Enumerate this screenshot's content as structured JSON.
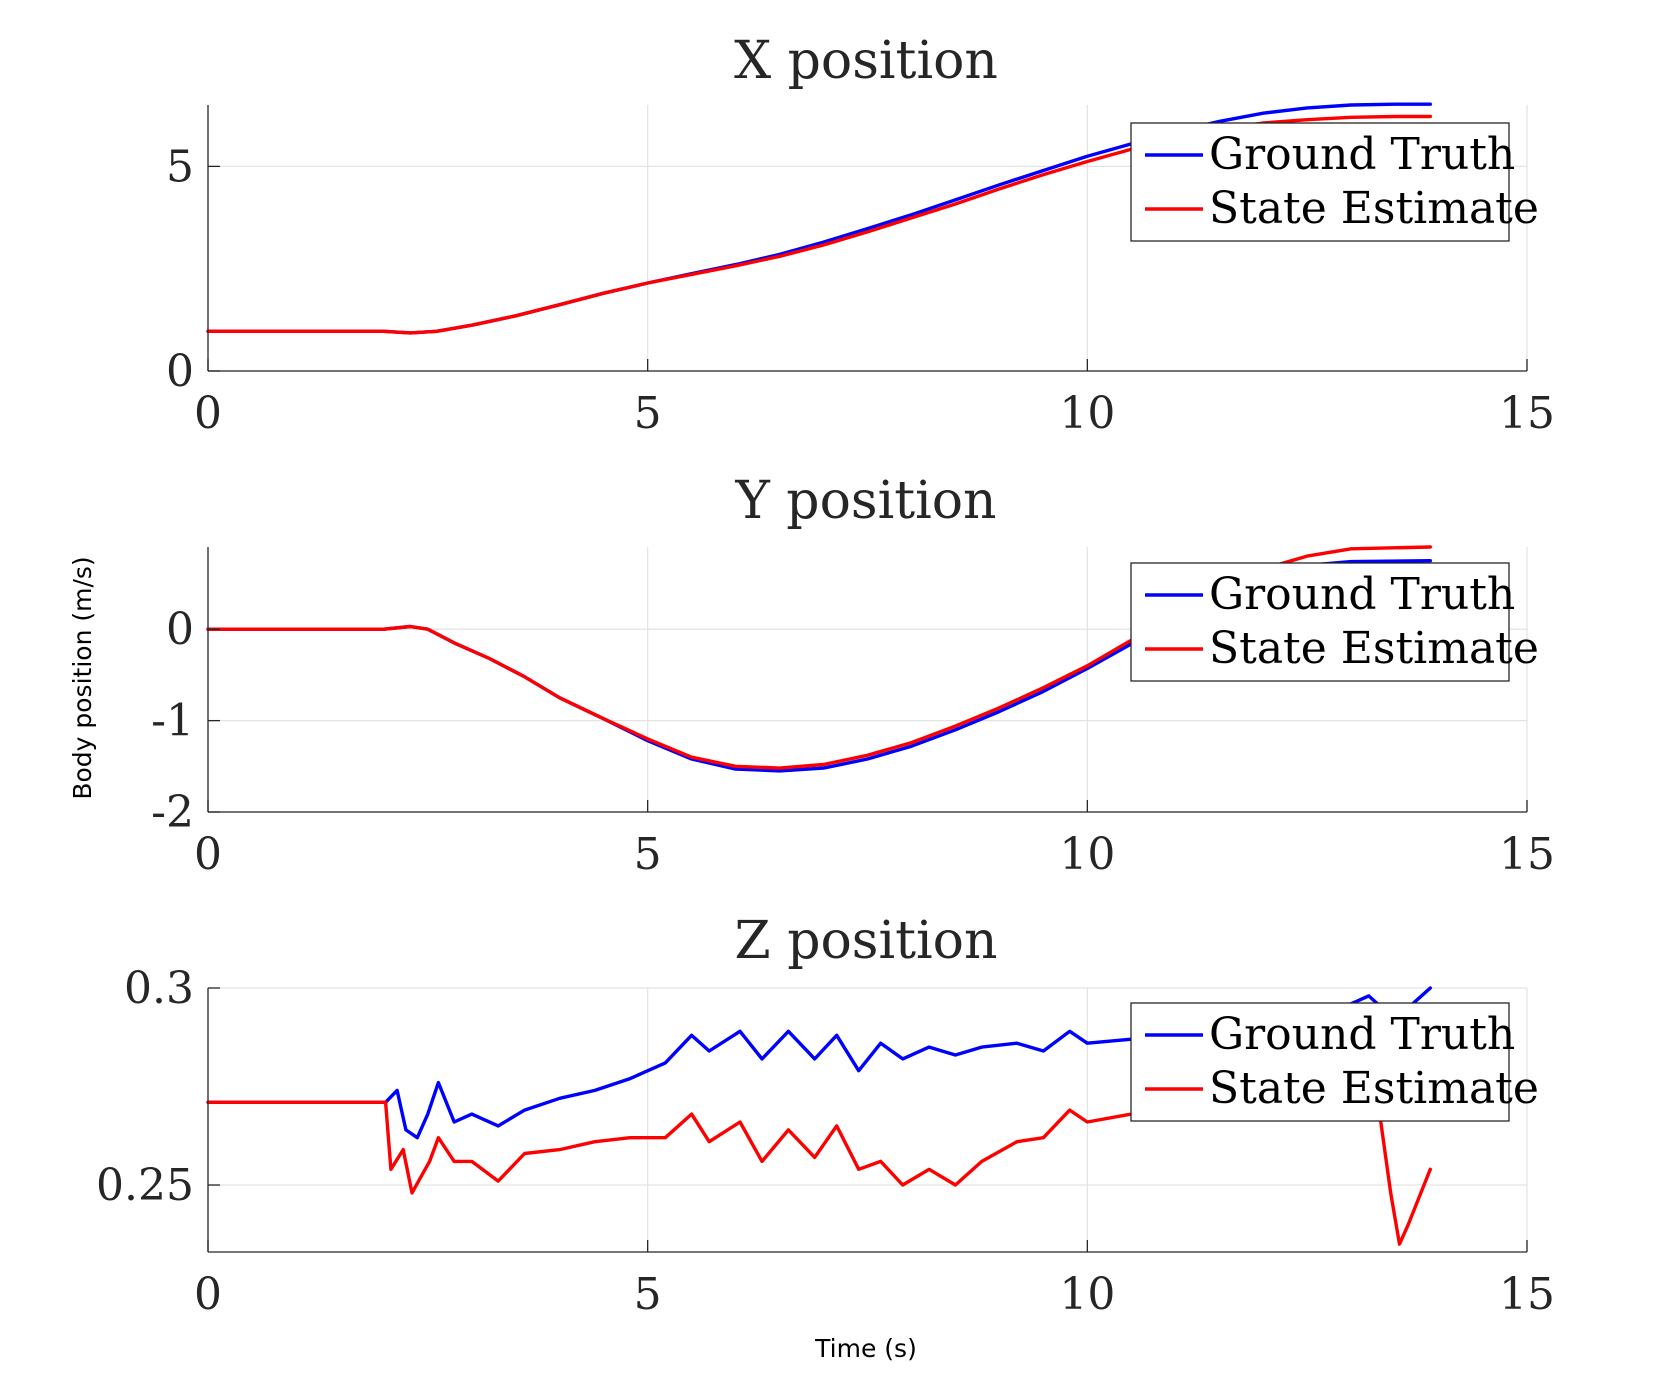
{
  "chart_data": [
    {
      "type": "line",
      "title": "X position",
      "xlim": [
        0,
        15
      ],
      "ylim": [
        0,
        6.5
      ],
      "xticks": [
        0,
        5,
        10,
        15
      ],
      "yticks": [
        0,
        5
      ],
      "grid": true,
      "legend": {
        "position": "top-right",
        "entries": [
          "Ground Truth",
          "State Estimate"
        ]
      },
      "series": [
        {
          "name": "Ground Truth",
          "color": "#0000ff",
          "x": [
            0,
            2.0,
            2.3,
            2.6,
            3.0,
            3.5,
            4.0,
            4.5,
            5.0,
            5.5,
            6.0,
            6.5,
            7.0,
            7.5,
            8.0,
            8.5,
            9.0,
            9.5,
            10.0,
            10.5,
            11.0,
            11.5,
            12.0,
            12.5,
            13.0,
            13.5,
            13.9
          ],
          "y": [
            0.97,
            0.97,
            0.93,
            0.97,
            1.12,
            1.35,
            1.62,
            1.9,
            2.15,
            2.38,
            2.6,
            2.85,
            3.15,
            3.48,
            3.82,
            4.18,
            4.55,
            4.9,
            5.25,
            5.55,
            5.85,
            6.1,
            6.3,
            6.43,
            6.5,
            6.52,
            6.52
          ]
        },
        {
          "name": "State Estimate",
          "color": "#ff0000",
          "x": [
            0,
            2.0,
            2.3,
            2.6,
            3.0,
            3.5,
            4.0,
            4.5,
            5.0,
            5.5,
            6.0,
            6.5,
            7.0,
            7.5,
            8.0,
            8.5,
            9.0,
            9.5,
            10.0,
            10.5,
            11.0,
            11.5,
            12.0,
            12.5,
            13.0,
            13.5,
            13.9
          ],
          "y": [
            0.97,
            0.97,
            0.93,
            0.97,
            1.12,
            1.35,
            1.62,
            1.9,
            2.15,
            2.36,
            2.57,
            2.8,
            3.08,
            3.4,
            3.74,
            4.08,
            4.45,
            4.8,
            5.12,
            5.42,
            5.7,
            5.92,
            6.06,
            6.14,
            6.2,
            6.22,
            6.22
          ]
        }
      ]
    },
    {
      "type": "line",
      "title": "Y position",
      "ylabel": "Body position (m/s)",
      "xlim": [
        0,
        15
      ],
      "ylim": [
        -2,
        0.9
      ],
      "xticks": [
        0,
        5,
        10,
        15
      ],
      "yticks": [
        -2,
        -1,
        0
      ],
      "grid": true,
      "legend": {
        "position": "top-right",
        "entries": [
          "Ground Truth",
          "State Estimate"
        ]
      },
      "series": [
        {
          "name": "Ground Truth",
          "color": "#0000ff",
          "x": [
            0,
            2.0,
            2.3,
            2.5,
            2.8,
            3.2,
            3.6,
            4.0,
            4.5,
            5.0,
            5.5,
            6.0,
            6.5,
            7.0,
            7.5,
            8.0,
            8.5,
            9.0,
            9.5,
            10.0,
            10.5,
            11.0,
            11.5,
            12.0,
            12.5,
            13.0,
            13.9
          ],
          "y": [
            0,
            0,
            0.03,
            0.0,
            -0.15,
            -0.32,
            -0.52,
            -0.75,
            -0.98,
            -1.22,
            -1.42,
            -1.53,
            -1.55,
            -1.52,
            -1.42,
            -1.28,
            -1.1,
            -0.9,
            -0.68,
            -0.43,
            -0.16,
            0.12,
            0.38,
            0.58,
            0.7,
            0.74,
            0.75
          ]
        },
        {
          "name": "State Estimate",
          "color": "#ff0000",
          "x": [
            0,
            2.0,
            2.3,
            2.5,
            2.8,
            3.2,
            3.6,
            4.0,
            4.5,
            5.0,
            5.5,
            6.0,
            6.5,
            7.0,
            7.5,
            8.0,
            8.5,
            9.0,
            9.5,
            10.0,
            10.5,
            11.0,
            11.5,
            12.0,
            12.5,
            13.0,
            13.9
          ],
          "y": [
            0,
            0,
            0.03,
            0.0,
            -0.15,
            -0.32,
            -0.52,
            -0.75,
            -0.98,
            -1.2,
            -1.4,
            -1.5,
            -1.52,
            -1.48,
            -1.38,
            -1.24,
            -1.06,
            -0.86,
            -0.64,
            -0.4,
            -0.12,
            0.16,
            0.44,
            0.66,
            0.8,
            0.88,
            0.9
          ]
        }
      ]
    },
    {
      "type": "line",
      "title": "Z position",
      "xlabel": "Time (s)",
      "xlim": [
        0,
        15
      ],
      "ylim": [
        0.233,
        0.3
      ],
      "xticks": [
        0,
        5,
        10,
        15
      ],
      "yticks": [
        0.25,
        0.3
      ],
      "grid": true,
      "legend": {
        "position": "top-right",
        "entries": [
          "Ground Truth",
          "State Estimate"
        ]
      },
      "series": [
        {
          "name": "Ground Truth",
          "color": "#0000ff",
          "x": [
            0,
            2.02,
            2.15,
            2.25,
            2.38,
            2.5,
            2.62,
            2.8,
            3.0,
            3.3,
            3.6,
            4.0,
            4.4,
            4.8,
            5.2,
            5.5,
            5.7,
            6.05,
            6.3,
            6.6,
            6.9,
            7.15,
            7.4,
            7.65,
            7.9,
            8.2,
            8.5,
            8.8,
            9.2,
            9.5,
            9.8,
            10.0,
            10.5,
            11.0,
            11.5,
            12.0,
            12.5,
            13.0,
            13.2,
            13.5,
            13.7,
            13.9
          ],
          "y": [
            0.271,
            0.271,
            0.274,
            0.264,
            0.262,
            0.268,
            0.276,
            0.266,
            0.268,
            0.265,
            0.269,
            0.272,
            0.274,
            0.277,
            0.281,
            0.288,
            0.284,
            0.289,
            0.282,
            0.289,
            0.282,
            0.288,
            0.279,
            0.286,
            0.282,
            0.285,
            0.283,
            0.285,
            0.286,
            0.284,
            0.289,
            0.286,
            0.287,
            0.288,
            0.29,
            0.291,
            0.293,
            0.296,
            0.298,
            0.292,
            0.296,
            0.3
          ]
        },
        {
          "name": "State Estimate",
          "color": "#ff0000",
          "x": [
            0,
            2.0,
            2.02,
            2.08,
            2.22,
            2.32,
            2.42,
            2.52,
            2.62,
            2.8,
            3.0,
            3.3,
            3.6,
            4.0,
            4.4,
            4.8,
            5.2,
            5.5,
            5.7,
            6.05,
            6.3,
            6.6,
            6.9,
            7.15,
            7.4,
            7.65,
            7.9,
            8.2,
            8.5,
            8.8,
            9.2,
            9.5,
            9.8,
            10.0,
            10.5,
            11.0,
            11.5,
            12.0,
            12.5,
            13.0,
            13.3,
            13.45,
            13.55,
            13.65,
            13.9
          ],
          "y": [
            0.271,
            0.271,
            0.271,
            0.254,
            0.259,
            0.248,
            0.252,
            0.256,
            0.262,
            0.256,
            0.256,
            0.251,
            0.258,
            0.259,
            0.261,
            0.262,
            0.262,
            0.268,
            0.261,
            0.266,
            0.256,
            0.264,
            0.257,
            0.265,
            0.254,
            0.256,
            0.25,
            0.254,
            0.25,
            0.256,
            0.261,
            0.262,
            0.269,
            0.266,
            0.268,
            0.27,
            0.274,
            0.278,
            0.282,
            0.285,
            0.272,
            0.248,
            0.235,
            0.24,
            0.254
          ]
        }
      ]
    }
  ]
}
